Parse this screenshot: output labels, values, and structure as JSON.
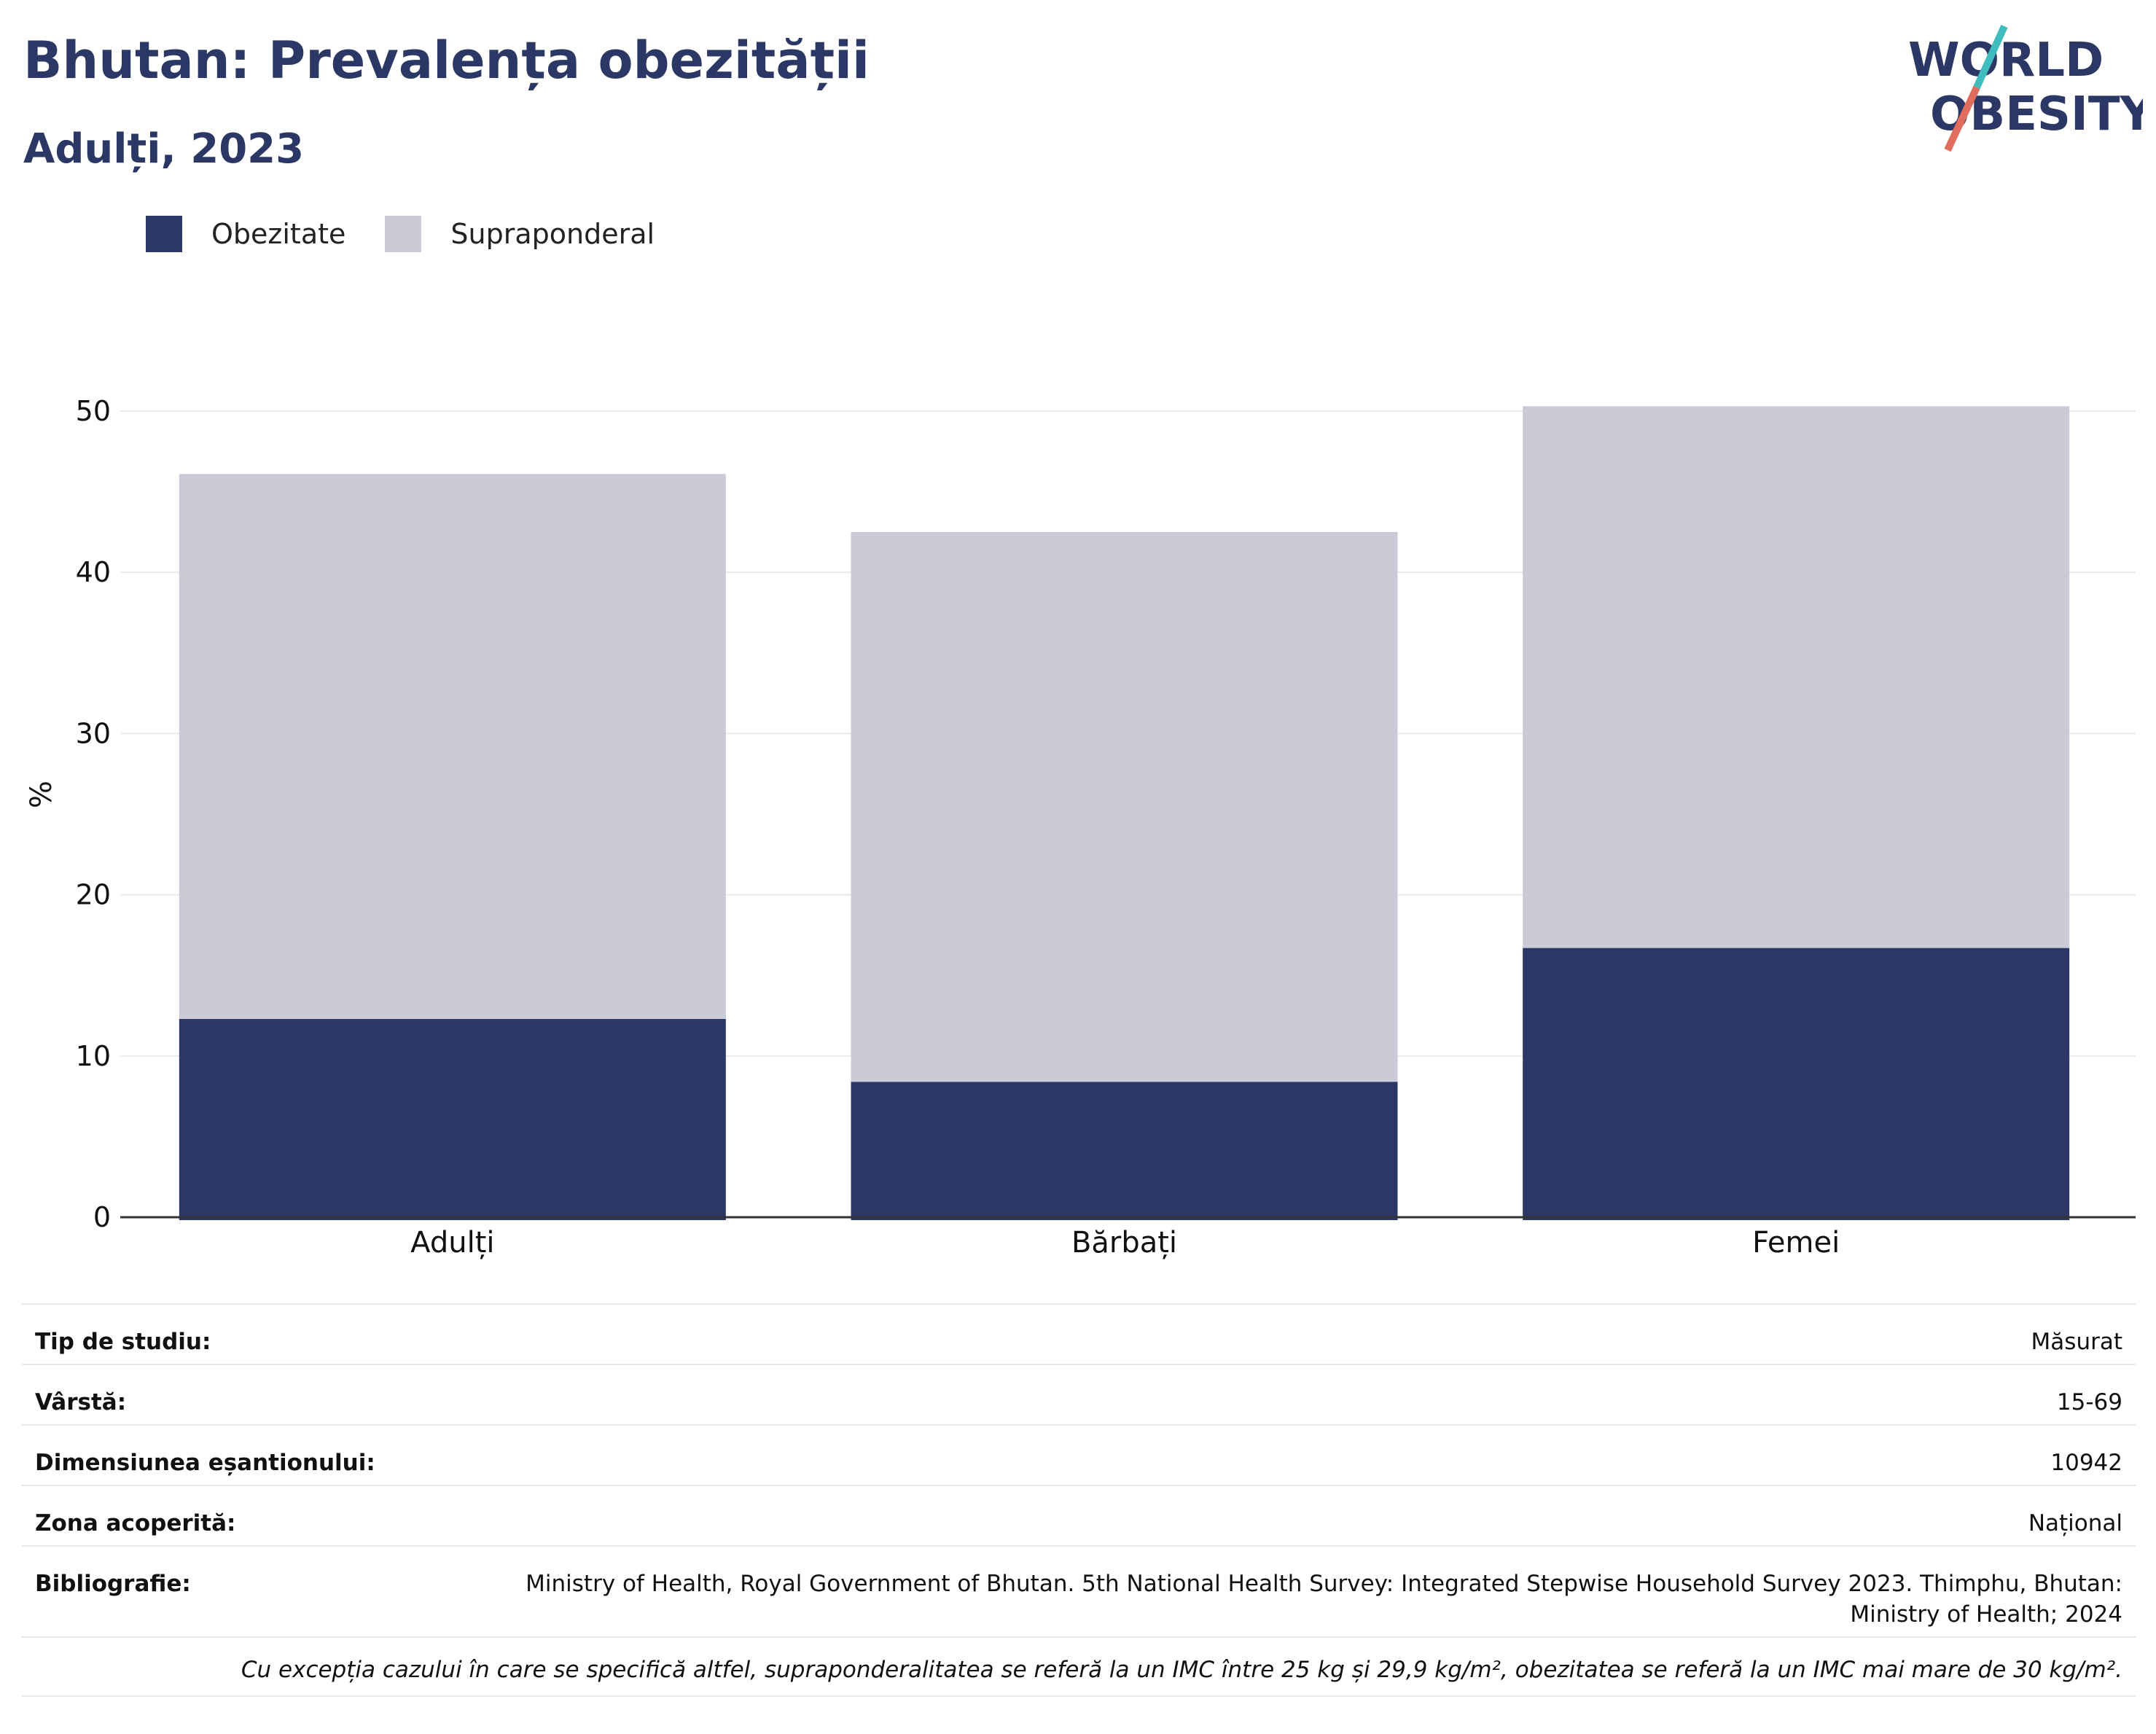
{
  "header": {
    "title": "Bhutan: Prevalența obezității",
    "subtitle": "Adulți, 2023"
  },
  "logo": {
    "line1": "WORLD",
    "line2": "OBESITY"
  },
  "colors": {
    "obesity": "#2b3764",
    "overweight": "#cacbd7",
    "title": "#2b3764",
    "logo_teal": "#3fbcbd",
    "logo_coral": "#e06d5e"
  },
  "chart_data": {
    "type": "bar",
    "stacked": true,
    "categories": [
      "Adulți",
      "Bărbați",
      "Femei"
    ],
    "series": [
      {
        "name": "Obezitate",
        "values": [
          12.3,
          8.4,
          16.7
        ]
      },
      {
        "name": "Supraponderal",
        "values": [
          33.8,
          34.1,
          33.6
        ]
      }
    ],
    "ylabel": "%",
    "ylim": [
      0,
      50
    ],
    "yticks": [
      0,
      10,
      20,
      30,
      40,
      50
    ],
    "grid": true,
    "legend": "top-left"
  },
  "meta": {
    "rows": [
      {
        "key": "Tip de studiu:",
        "value": "Măsurat"
      },
      {
        "key": "Vârstă:",
        "value": "15-69"
      },
      {
        "key": "Dimensiunea eșantionului:",
        "value": "10942"
      },
      {
        "key": "Zona acoperită:",
        "value": "Național"
      },
      {
        "key": "Bibliografie:",
        "value": "Ministry of Health, Royal Government of Bhutan. 5th National Health Survey: Integrated Stepwise Household Survey 2023. Thimphu, Bhutan: Ministry of Health; 2024"
      }
    ],
    "footnote": "Cu excepția cazului în care se specifică altfel, supraponderalitatea se referă la un IMC între 25 kg și 29,9 kg/m², obezitatea se referă la un IMC mai mare de 30 kg/m²."
  }
}
